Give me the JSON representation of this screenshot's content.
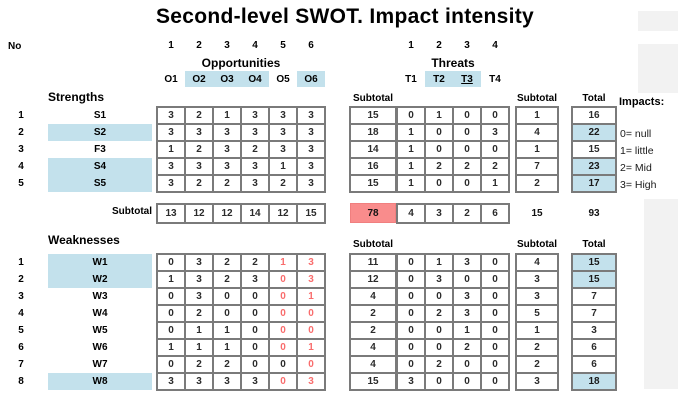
{
  "title": "Second-level SWOT. Impact intensity",
  "header": {
    "no_label": "No",
    "subtotal_label": "Subtotal",
    "total_label": "Total",
    "impacts_label": "Impacts:",
    "opportunities": {
      "label": "Opportunities",
      "numbers": [
        "1",
        "2",
        "3",
        "4",
        "5",
        "6"
      ],
      "cols": [
        {
          "label": "O1",
          "highlight": false
        },
        {
          "label": "O2",
          "highlight": true
        },
        {
          "label": "O3",
          "highlight": true
        },
        {
          "label": "O4",
          "highlight": true
        },
        {
          "label": "O5",
          "highlight": false
        },
        {
          "label": "O6",
          "highlight": true
        }
      ]
    },
    "threats": {
      "label": "Threats",
      "numbers": [
        "1",
        "2",
        "3",
        "4"
      ],
      "cols": [
        {
          "label": "T1",
          "highlight": false,
          "underline": false
        },
        {
          "label": "T2",
          "highlight": true,
          "underline": false
        },
        {
          "label": "T3",
          "highlight": true,
          "underline": true
        },
        {
          "label": "T4",
          "highlight": false,
          "underline": false
        }
      ]
    }
  },
  "legend": [
    "0= null",
    "1= little",
    "2= Mid",
    "3= High"
  ],
  "strengths": {
    "label": "Strengths",
    "rows": [
      {
        "no": "1",
        "name": "S1",
        "name_highlight": false,
        "opp": [
          "3",
          "2",
          "1",
          "3",
          "3",
          "3"
        ],
        "opp_subtotal": "15",
        "thr": [
          "0",
          "1",
          "0",
          "0"
        ],
        "thr_subtotal": "1",
        "total": "16",
        "total_highlight": false
      },
      {
        "no": "2",
        "name": "S2",
        "name_highlight": true,
        "opp": [
          "3",
          "3",
          "3",
          "3",
          "3",
          "3"
        ],
        "opp_subtotal": "18",
        "thr": [
          "1",
          "0",
          "0",
          "3"
        ],
        "thr_subtotal": "4",
        "total": "22",
        "total_highlight": true
      },
      {
        "no": "3",
        "name": "F3",
        "name_highlight": false,
        "opp": [
          "1",
          "2",
          "3",
          "2",
          "3",
          "3"
        ],
        "opp_subtotal": "14",
        "thr": [
          "1",
          "0",
          "0",
          "0"
        ],
        "thr_subtotal": "1",
        "total": "15",
        "total_highlight": false
      },
      {
        "no": "4",
        "name": "S4",
        "name_highlight": true,
        "opp": [
          "3",
          "3",
          "3",
          "3",
          "1",
          "3"
        ],
        "opp_subtotal": "16",
        "thr": [
          "1",
          "2",
          "2",
          "2"
        ],
        "thr_subtotal": "7",
        "total": "23",
        "total_highlight": true
      },
      {
        "no": "5",
        "name": "S5",
        "name_highlight": true,
        "opp": [
          "3",
          "2",
          "2",
          "3",
          "2",
          "3"
        ],
        "opp_subtotal": "15",
        "thr": [
          "1",
          "0",
          "0",
          "1"
        ],
        "thr_subtotal": "2",
        "total": "17",
        "total_highlight": true
      }
    ]
  },
  "subtotal_row": {
    "label": "Subtotal",
    "opp": [
      "13",
      "12",
      "12",
      "14",
      "12",
      "15"
    ],
    "opp_total": "78",
    "thr": [
      "4",
      "3",
      "2",
      "6"
    ],
    "thr_subtotal": "15",
    "grand_total": "93"
  },
  "weaknesses": {
    "label": "Weaknesses",
    "subtotal_label": "Subtotal",
    "total_label": "Total",
    "rows": [
      {
        "no": "1",
        "name": "W1",
        "name_highlight": true,
        "opp": [
          "0",
          "3",
          "2",
          "2",
          "1",
          "3"
        ],
        "opp_red": [
          false,
          false,
          false,
          false,
          true,
          true
        ],
        "opp_subtotal": "11",
        "thr": [
          "0",
          "1",
          "3",
          "0"
        ],
        "thr_subtotal": "4",
        "total": "15",
        "total_highlight": true
      },
      {
        "no": "2",
        "name": "W2",
        "name_highlight": true,
        "opp": [
          "1",
          "3",
          "2",
          "3",
          "0",
          "3"
        ],
        "opp_red": [
          false,
          false,
          false,
          false,
          true,
          true
        ],
        "opp_subtotal": "12",
        "thr": [
          "0",
          "3",
          "0",
          "0"
        ],
        "thr_subtotal": "3",
        "total": "15",
        "total_highlight": true
      },
      {
        "no": "3",
        "name": "W3",
        "name_highlight": false,
        "opp": [
          "0",
          "3",
          "0",
          "0",
          "0",
          "1"
        ],
        "opp_red": [
          false,
          false,
          false,
          false,
          true,
          true
        ],
        "opp_subtotal": "4",
        "thr": [
          "0",
          "0",
          "3",
          "0"
        ],
        "thr_subtotal": "3",
        "total": "7",
        "total_highlight": false
      },
      {
        "no": "4",
        "name": "W4",
        "name_highlight": false,
        "opp": [
          "0",
          "2",
          "0",
          "0",
          "0",
          "0"
        ],
        "opp_red": [
          false,
          false,
          false,
          false,
          true,
          true
        ],
        "opp_subtotal": "2",
        "thr": [
          "0",
          "2",
          "3",
          "0"
        ],
        "thr_subtotal": "5",
        "total": "7",
        "total_highlight": false
      },
      {
        "no": "5",
        "name": "W5",
        "name_highlight": false,
        "opp": [
          "0",
          "1",
          "1",
          "0",
          "0",
          "0"
        ],
        "opp_red": [
          false,
          false,
          false,
          false,
          true,
          true
        ],
        "opp_subtotal": "2",
        "thr": [
          "0",
          "0",
          "1",
          "0"
        ],
        "thr_subtotal": "1",
        "total": "3",
        "total_highlight": false
      },
      {
        "no": "6",
        "name": "W6",
        "name_highlight": false,
        "opp": [
          "1",
          "1",
          "1",
          "0",
          "0",
          "1"
        ],
        "opp_red": [
          false,
          false,
          false,
          false,
          true,
          true
        ],
        "opp_subtotal": "4",
        "thr": [
          "0",
          "0",
          "2",
          "0"
        ],
        "thr_subtotal": "2",
        "total": "6",
        "total_highlight": false
      },
      {
        "no": "7",
        "name": "W7",
        "name_highlight": false,
        "opp": [
          "0",
          "2",
          "2",
          "0",
          "0",
          "0"
        ],
        "opp_red": [
          false,
          false,
          false,
          false,
          false,
          true
        ],
        "opp_subtotal": "4",
        "thr": [
          "0",
          "2",
          "0",
          "0"
        ],
        "thr_subtotal": "2",
        "total": "6",
        "total_highlight": false
      },
      {
        "no": "8",
        "name": "W8",
        "name_highlight": true,
        "opp": [
          "3",
          "3",
          "3",
          "3",
          "0",
          "3"
        ],
        "opp_red": [
          false,
          false,
          false,
          false,
          true,
          true
        ],
        "opp_subtotal": "15",
        "thr": [
          "3",
          "0",
          "0",
          "0"
        ],
        "thr_subtotal": "3",
        "total": "18",
        "total_highlight": true
      }
    ]
  },
  "colors": {
    "highlight_blue": "#c3e1ec",
    "subtotal_red_bg": "#f98c8c",
    "red_text": "#f96d6d",
    "grid_border": "#7a7a7a",
    "gray_panel": "#f2f2f2"
  }
}
